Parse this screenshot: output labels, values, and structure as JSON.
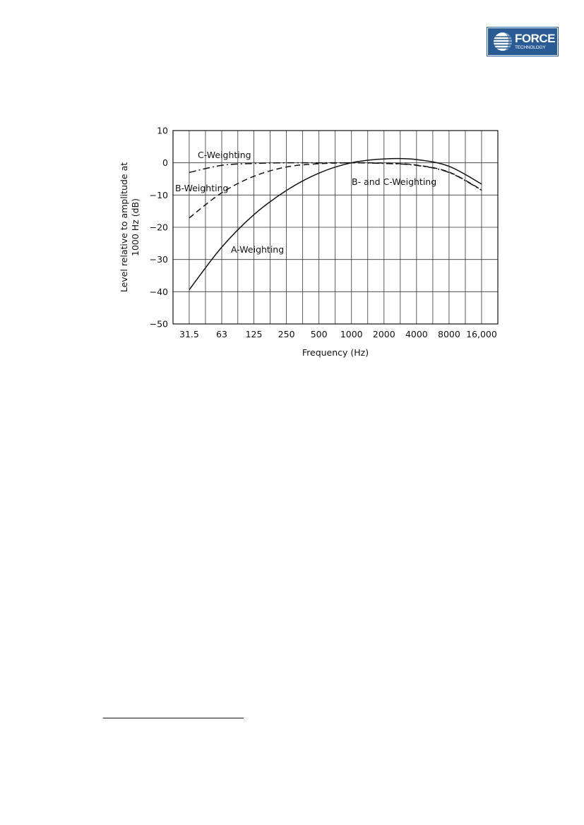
{
  "logo": {
    "word": "FORCE",
    "subtitle": "TECHNOLOGY",
    "brand_color": "#2a5b94"
  },
  "chart_data": {
    "type": "line",
    "xlabel": "Frequency (Hz)",
    "ylabel_lines": [
      "Level relative to amplitude at",
      "1000 Hz (dB)"
    ],
    "x_scale": "log2 (octave bands)",
    "xlim": [
      22.3,
      22627
    ],
    "ylim": [
      -50,
      10
    ],
    "grid": true,
    "x_ticks": [
      31.5,
      63,
      125,
      250,
      500,
      1000,
      2000,
      4000,
      8000,
      16000
    ],
    "x_tick_labels": [
      "31.5",
      "63",
      "125",
      "250",
      "500",
      "1000",
      "2000",
      "4000",
      "8000",
      "16,000"
    ],
    "y_ticks": [
      10,
      0,
      -10,
      -20,
      -30,
      -40,
      -50
    ],
    "y_tick_labels": [
      "10",
      "0",
      "−10",
      "−20",
      "−30",
      "−40",
      "−50"
    ],
    "series": [
      {
        "name": "A-Weighting",
        "style": "solid",
        "x": [
          31.5,
          63,
          125,
          250,
          500,
          1000,
          2000,
          4000,
          8000,
          16000
        ],
        "values": [
          -39.4,
          -26.2,
          -16.1,
          -8.6,
          -3.2,
          0,
          1.2,
          1.0,
          -1.1,
          -6.6
        ]
      },
      {
        "name": "B-Weighting",
        "style": "dashed",
        "x": [
          31.5,
          63,
          125,
          250,
          500,
          1000,
          2000,
          4000,
          8000,
          16000
        ],
        "values": [
          -17.1,
          -9.3,
          -4.2,
          -1.3,
          -0.3,
          0,
          -0.1,
          -0.7,
          -2.9,
          -8.4
        ]
      },
      {
        "name": "C-Weighting",
        "style": "dashdot",
        "x": [
          31.5,
          63,
          125,
          250,
          500,
          1000,
          2000,
          4000,
          8000,
          16000
        ],
        "values": [
          -3.0,
          -0.8,
          -0.2,
          0,
          0,
          0,
          -0.2,
          -0.8,
          -3.0,
          -8.5
        ]
      }
    ],
    "annotations": [
      {
        "text": "C-Weighting",
        "series": "C-Weighting"
      },
      {
        "text": "B-Weighting",
        "series": "B-Weighting"
      },
      {
        "text": "A-Weighting",
        "series": "A-Weighting"
      },
      {
        "text": "B- and C-Weighting",
        "series": "B-Weighting, C-Weighting"
      }
    ]
  }
}
